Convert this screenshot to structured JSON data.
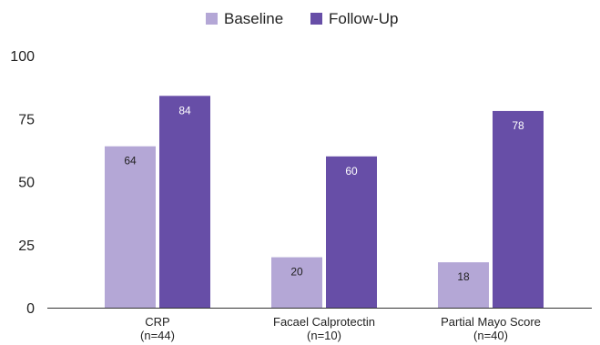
{
  "chart_data": {
    "type": "bar",
    "categories": [
      "CRP",
      "Facael Calprotectin",
      "Partial Mayo Score"
    ],
    "category_sublabels": [
      "(n=44)",
      "(n=10)",
      "(n=40)"
    ],
    "series": [
      {
        "name": "Baseline",
        "values": [
          64,
          20,
          18
        ],
        "color": "#b4a7d6",
        "label_color": "#222222"
      },
      {
        "name": "Follow-Up",
        "values": [
          84,
          60,
          78
        ],
        "color": "#674ea7",
        "label_color": "#ffffff"
      }
    ],
    "ylim": [
      0,
      100
    ],
    "yticks": [
      0,
      25,
      50,
      75,
      100
    ],
    "grid": false,
    "legend_position": "top-center",
    "title": "",
    "xlabel": "",
    "ylabel": ""
  }
}
